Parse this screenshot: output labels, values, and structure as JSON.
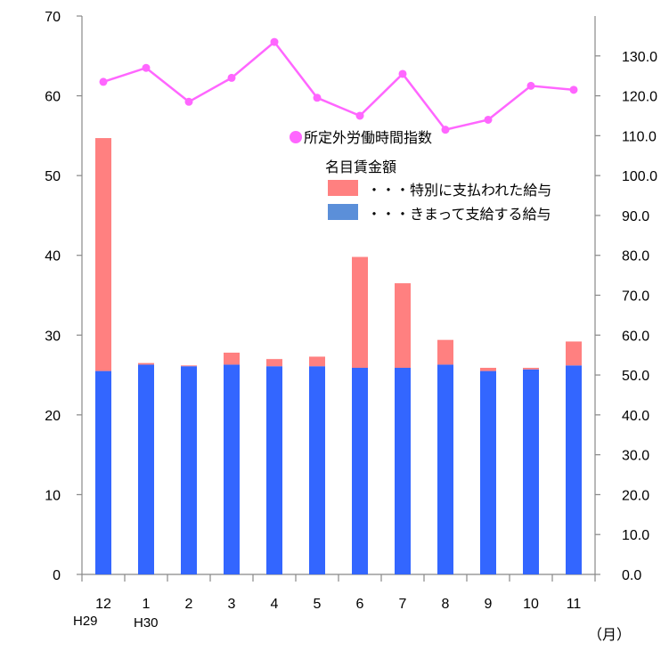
{
  "chart_data": {
    "type": "bar",
    "stacked": true,
    "categories": [
      "12",
      "1",
      "2",
      "3",
      "4",
      "5",
      "6",
      "7",
      "8",
      "9",
      "10",
      "11"
    ],
    "era_labels": [
      {
        "category": "12",
        "label": "H29"
      },
      {
        "category": "1",
        "label": "H30"
      }
    ],
    "x_unit_label": "（月）",
    "y_left": {
      "min": 0,
      "max": 70,
      "step": 10,
      "ticks": [
        "0",
        "10",
        "20",
        "30",
        "40",
        "50",
        "60",
        "70"
      ]
    },
    "y_right": {
      "min": 0,
      "max": 140,
      "step": 10,
      "ticks": [
        "0.0",
        "10.0",
        "20.0",
        "30.0",
        "40.0",
        "50.0",
        "60.0",
        "70.0",
        "80.0",
        "90.0",
        "100.0",
        "110.0",
        "120.0",
        "130.0"
      ]
    },
    "legend_title": "名目賃金額",
    "series": [
      {
        "name": "・・・きまって支給する給与",
        "axis": "left",
        "kind": "bar",
        "color": "#3366ff",
        "legend_color": "#5b8fd9",
        "values": [
          25.5,
          26.3,
          26.1,
          26.3,
          26.1,
          26.1,
          25.9,
          25.9,
          26.3,
          25.5,
          25.7,
          26.2
        ]
      },
      {
        "name": "・・・特別に支払われた給与",
        "axis": "left",
        "kind": "bar",
        "color": "#ff8080",
        "legend_color": "#ff8080",
        "values": [
          29.2,
          0.2,
          0.1,
          1.5,
          0.9,
          1.2,
          13.9,
          10.6,
          3.1,
          0.4,
          0.2,
          3.0
        ]
      },
      {
        "name": "所定外労働時間指数",
        "axis": "right",
        "kind": "line",
        "color": "#ff66ff",
        "values": [
          123.5,
          127.0,
          118.5,
          124.5,
          133.5,
          119.5,
          115.0,
          125.5,
          111.5,
          114.0,
          122.5,
          121.5
        ]
      }
    ]
  }
}
